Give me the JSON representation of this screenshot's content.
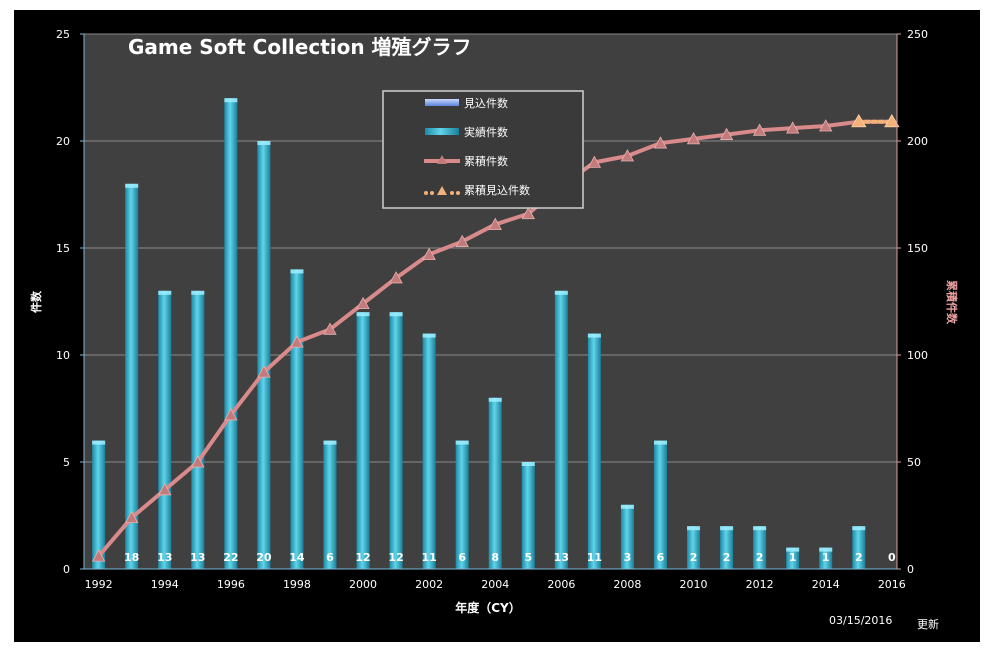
{
  "chart_data": {
    "type": "bar",
    "title": "Game Soft Collection 増殖グラフ",
    "xlabel": "年度（CY）",
    "ylabel": "件数",
    "y2label": "累積件数",
    "ylim": [
      0,
      25
    ],
    "y2lim": [
      0,
      250
    ],
    "yticks": [
      "0",
      "5",
      "10",
      "15",
      "20",
      "25"
    ],
    "y2ticks": [
      "0",
      "50",
      "100",
      "150",
      "200",
      "250"
    ],
    "categories": [
      "1992",
      "1993",
      "1994",
      "1995",
      "1996",
      "1997",
      "1998",
      "1999",
      "2000",
      "2001",
      "2002",
      "2003",
      "2004",
      "2005",
      "2006",
      "2007",
      "2008",
      "2009",
      "2010",
      "2011",
      "2012",
      "2013",
      "2014",
      "2015",
      "2016"
    ],
    "xticks": [
      "1992",
      "1994",
      "1996",
      "1998",
      "2000",
      "2002",
      "2004",
      "2006",
      "2008",
      "2010",
      "2012",
      "2014",
      "2016"
    ],
    "grid": true,
    "legend_position": "top-center",
    "series": [
      {
        "name": "見込件数",
        "type": "bar",
        "axis": "left",
        "color": "#7aa2e8",
        "values": [
          0,
          0,
          0,
          0,
          0,
          0,
          0,
          0,
          0,
          0,
          0,
          0,
          0,
          0,
          0,
          0,
          0,
          0,
          0,
          0,
          0,
          0,
          0,
          0,
          0
        ]
      },
      {
        "name": "実績件数",
        "type": "bar",
        "axis": "left",
        "color": "#35b6cf",
        "values": [
          6,
          18,
          13,
          13,
          22,
          20,
          14,
          6,
          12,
          12,
          11,
          6,
          8,
          5,
          13,
          11,
          3,
          6,
          2,
          2,
          2,
          1,
          1,
          2,
          0
        ]
      },
      {
        "name": "累積件数",
        "type": "line",
        "axis": "right",
        "color": "#d98a8a",
        "values": [
          6,
          24,
          37,
          50,
          72,
          92,
          106,
          112,
          124,
          136,
          147,
          153,
          161,
          166,
          179,
          190,
          193,
          199,
          201,
          203,
          205,
          206,
          207,
          209,
          209
        ]
      },
      {
        "name": "累積見込件数",
        "type": "line",
        "axis": "right",
        "color": "#f3b27a",
        "values": [
          null,
          null,
          null,
          null,
          null,
          null,
          null,
          null,
          null,
          null,
          null,
          null,
          null,
          null,
          null,
          null,
          null,
          null,
          null,
          null,
          null,
          null,
          null,
          209,
          209
        ]
      }
    ],
    "bar_labels": [
      "6",
      "18",
      "13",
      "13",
      "22",
      "20",
      "14",
      "6",
      "12",
      "12",
      "11",
      "6",
      "8",
      "5",
      "13",
      "11",
      "3",
      "6",
      "2",
      "2",
      "2",
      "1",
      "1",
      "2",
      "0"
    ]
  },
  "footer": {
    "date": "03/15/2016",
    "updated": "更新"
  }
}
